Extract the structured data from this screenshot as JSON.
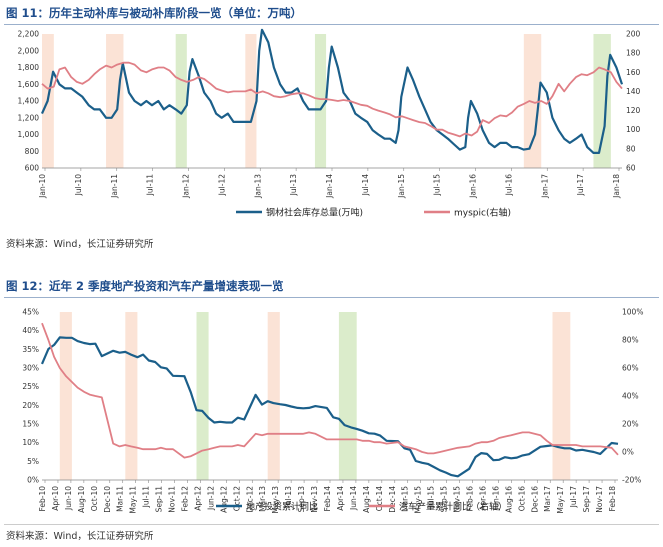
{
  "charts": [
    {
      "figure_label": "图 11：",
      "figure_title": "历年主动补库与被动补库阶段一览（单位：万吨）",
      "source": "资料来源：Wind，长江证券研究所"
    },
    {
      "figure_label": "图 12：",
      "figure_title": "近年 2 季度地产投资和汽车产量增速表现一览",
      "source": "资料来源：Wind，长江证券研究所"
    }
  ],
  "colors": {
    "blue": "#1b5f8a",
    "pink": "#e07f86",
    "shade_orange": "#fbe3d6",
    "shade_green": "#dbeccb",
    "title": "#1f4d8c"
  },
  "chart_data": [
    {
      "type": "line",
      "x_ticks": [
        "Jan-10",
        "Jul-10",
        "Jan-11",
        "Jul-11",
        "Jan-12",
        "Jul-12",
        "Jan-13",
        "Jul-13",
        "Jan-14",
        "Jul-14",
        "Jan-15",
        "Jul-15",
        "Jan-16",
        "Jul-16",
        "Jan-17",
        "Jul-17",
        "Jan-18"
      ],
      "x_range": [
        2010.0,
        2018.33
      ],
      "ylim_left": [
        600,
        2200
      ],
      "y_ticks_left": [
        "600",
        "800",
        "1,000",
        "1,200",
        "1,400",
        "1,600",
        "1,800",
        "2,000",
        "2,200"
      ],
      "ylim_right": [
        60,
        200
      ],
      "y_ticks_right": [
        "60",
        "80",
        "100",
        "120",
        "140",
        "160",
        "180",
        "200"
      ],
      "shaded_periods": [
        {
          "start": 2010.0,
          "end": 2010.17,
          "color": "orange"
        },
        {
          "start": 2010.92,
          "end": 2011.17,
          "color": "orange"
        },
        {
          "start": 2011.92,
          "end": 2012.08,
          "color": "green"
        },
        {
          "start": 2012.92,
          "end": 2013.08,
          "color": "orange"
        },
        {
          "start": 2013.92,
          "end": 2014.08,
          "color": "green"
        },
        {
          "start": 2016.92,
          "end": 2017.17,
          "color": "orange"
        },
        {
          "start": 2017.92,
          "end": 2018.17,
          "color": "green"
        }
      ],
      "series": [
        {
          "name": "钢材社会库存总量(万吨)",
          "axis": "left",
          "color": "blue",
          "x": [
            2010.0,
            2010.08,
            2010.16,
            2010.25,
            2010.33,
            2010.42,
            2010.5,
            2010.58,
            2010.67,
            2010.75,
            2010.83,
            2010.92,
            2011.0,
            2011.08,
            2011.12,
            2011.16,
            2011.25,
            2011.33,
            2011.42,
            2011.5,
            2011.58,
            2011.67,
            2011.75,
            2011.83,
            2011.92,
            2012.0,
            2012.08,
            2012.12,
            2012.16,
            2012.25,
            2012.33,
            2012.42,
            2012.5,
            2012.58,
            2012.67,
            2012.75,
            2012.83,
            2012.92,
            2013.0,
            2013.08,
            2013.12,
            2013.16,
            2013.25,
            2013.33,
            2013.42,
            2013.5,
            2013.58,
            2013.67,
            2013.75,
            2013.83,
            2013.92,
            2014.0,
            2014.08,
            2014.12,
            2014.16,
            2014.25,
            2014.33,
            2014.42,
            2014.5,
            2014.58,
            2014.67,
            2014.75,
            2014.83,
            2014.92,
            2015.0,
            2015.08,
            2015.12,
            2015.16,
            2015.25,
            2015.33,
            2015.42,
            2015.5,
            2015.58,
            2015.67,
            2015.75,
            2015.83,
            2015.92,
            2016.0,
            2016.08,
            2016.12,
            2016.16,
            2016.25,
            2016.33,
            2016.42,
            2016.5,
            2016.58,
            2016.67,
            2016.75,
            2016.83,
            2016.92,
            2017.0,
            2017.08,
            2017.12,
            2017.16,
            2017.25,
            2017.33,
            2017.42,
            2017.5,
            2017.58,
            2017.67,
            2017.75,
            2017.83,
            2017.92,
            2018.0,
            2018.08,
            2018.12,
            2018.16,
            2018.25,
            2018.33
          ],
          "values": [
            1250,
            1400,
            1750,
            1600,
            1550,
            1550,
            1500,
            1450,
            1350,
            1300,
            1300,
            1200,
            1200,
            1300,
            1650,
            1850,
            1500,
            1400,
            1350,
            1400,
            1350,
            1400,
            1300,
            1350,
            1300,
            1250,
            1350,
            1750,
            1900,
            1700,
            1500,
            1400,
            1250,
            1200,
            1250,
            1150,
            1150,
            1150,
            1150,
            1400,
            2000,
            2250,
            2100,
            1800,
            1600,
            1500,
            1500,
            1550,
            1400,
            1300,
            1300,
            1300,
            1400,
            1800,
            2050,
            1800,
            1500,
            1400,
            1250,
            1200,
            1150,
            1050,
            1000,
            950,
            950,
            900,
            1050,
            1450,
            1800,
            1650,
            1450,
            1300,
            1150,
            1050,
            1000,
            950,
            880,
            820,
            850,
            1200,
            1400,
            1250,
            1050,
            900,
            850,
            900,
            900,
            850,
            850,
            820,
            830,
            1000,
            1300,
            1620,
            1500,
            1200,
            1050,
            950,
            900,
            950,
            1000,
            850,
            780,
            780,
            1100,
            1700,
            1950,
            1800,
            1600
          ]
        },
        {
          "name": "myspic(右轴)",
          "axis": "right",
          "color": "pink",
          "x": [
            2010.0,
            2010.08,
            2010.17,
            2010.25,
            2010.33,
            2010.42,
            2010.5,
            2010.58,
            2010.67,
            2010.75,
            2010.83,
            2010.92,
            2011.0,
            2011.08,
            2011.17,
            2011.25,
            2011.33,
            2011.42,
            2011.5,
            2011.58,
            2011.67,
            2011.75,
            2011.83,
            2011.92,
            2012.0,
            2012.08,
            2012.17,
            2012.25,
            2012.33,
            2012.42,
            2012.5,
            2012.58,
            2012.67,
            2012.75,
            2012.83,
            2012.92,
            2013.0,
            2013.08,
            2013.17,
            2013.25,
            2013.33,
            2013.42,
            2013.5,
            2013.58,
            2013.67,
            2013.75,
            2013.83,
            2013.92,
            2014.0,
            2014.08,
            2014.17,
            2014.25,
            2014.33,
            2014.42,
            2014.5,
            2014.58,
            2014.67,
            2014.75,
            2014.83,
            2014.92,
            2015.0,
            2015.08,
            2015.17,
            2015.25,
            2015.33,
            2015.42,
            2015.5,
            2015.58,
            2015.67,
            2015.75,
            2015.83,
            2015.92,
            2016.0,
            2016.08,
            2016.17,
            2016.25,
            2016.33,
            2016.42,
            2016.5,
            2016.58,
            2016.67,
            2016.75,
            2016.83,
            2016.92,
            2017.0,
            2017.08,
            2017.17,
            2017.25,
            2017.33,
            2017.42,
            2017.5,
            2017.58,
            2017.67,
            2017.75,
            2017.83,
            2017.92,
            2018.0,
            2018.08,
            2018.17,
            2018.25,
            2018.33
          ],
          "values": [
            148,
            143,
            145,
            163,
            165,
            155,
            150,
            148,
            152,
            158,
            163,
            167,
            165,
            168,
            170,
            170,
            168,
            162,
            160,
            163,
            165,
            165,
            162,
            155,
            152,
            150,
            152,
            155,
            153,
            148,
            143,
            141,
            139,
            140,
            140,
            140,
            142,
            138,
            140,
            138,
            135,
            134,
            135,
            137,
            138,
            138,
            136,
            133,
            132,
            132,
            131,
            130,
            131,
            130,
            128,
            126,
            125,
            122,
            120,
            118,
            116,
            113,
            114,
            112,
            110,
            108,
            107,
            104,
            100,
            100,
            97,
            95,
            93,
            96,
            94,
            98,
            110,
            107,
            112,
            115,
            114,
            118,
            124,
            127,
            130,
            128,
            130,
            127,
            135,
            148,
            140,
            148,
            155,
            158,
            157,
            160,
            165,
            163,
            160,
            150,
            143
          ]
        }
      ]
    },
    {
      "type": "line",
      "x_ticks": [
        "Feb-10",
        "Apr-10",
        "Jun-10",
        "Aug-10",
        "Oct-10",
        "Dec-10",
        "Mar-11",
        "May-11",
        "Jul-11",
        "Sep-11",
        "Nov-11",
        "Feb-12",
        "Apr-12",
        "Jun-12",
        "Aug-12",
        "Oct-12",
        "Dec-12",
        "Mar-13",
        "May-13",
        "Jul-13",
        "Sep-13",
        "Nov-13",
        "Feb-14",
        "Apr-14",
        "Jun-14",
        "Aug-14",
        "Oct-14",
        "Dec-14",
        "Mar-15",
        "May-15",
        "Jul-15",
        "Sep-15",
        "Nov-15",
        "Feb-16",
        "Apr-16",
        "Jun-16",
        "Aug-16",
        "Oct-16",
        "Dec-16",
        "Mar-17",
        "May-17",
        "Jul-17",
        "Sep-17",
        "Nov-17",
        "Feb-18"
      ],
      "x_range": [
        2010.08,
        2018.17
      ],
      "ylim_left": [
        0,
        45
      ],
      "y_ticks_left": [
        "0%",
        "5%",
        "10%",
        "15%",
        "20%",
        "25%",
        "30%",
        "35%",
        "40%",
        "45%"
      ],
      "ylim_right": [
        -20,
        100
      ],
      "y_ticks_right": [
        "-20%",
        "0%",
        "20%",
        "40%",
        "60%",
        "80%",
        "100%"
      ],
      "shaded_periods": [
        {
          "start": 2010.33,
          "end": 2010.5,
          "color": "orange"
        },
        {
          "start": 2011.25,
          "end": 2011.42,
          "color": "orange"
        },
        {
          "start": 2012.25,
          "end": 2012.42,
          "color": "green"
        },
        {
          "start": 2013.25,
          "end": 2013.42,
          "color": "orange"
        },
        {
          "start": 2014.25,
          "end": 2014.5,
          "color": "green"
        },
        {
          "start": 2017.25,
          "end": 2017.5,
          "color": "orange"
        }
      ],
      "series": [
        {
          "name": "地产投资累计同比",
          "axis": "left",
          "color": "blue",
          "x": [
            2010.08,
            2010.17,
            2010.25,
            2010.33,
            2010.42,
            2010.5,
            2010.58,
            2010.67,
            2010.75,
            2010.83,
            2010.92,
            2011.08,
            2011.17,
            2011.25,
            2011.33,
            2011.42,
            2011.5,
            2011.58,
            2011.67,
            2011.75,
            2011.83,
            2011.92,
            2012.08,
            2012.17,
            2012.25,
            2012.33,
            2012.42,
            2012.5,
            2012.58,
            2012.67,
            2012.75,
            2012.83,
            2012.92,
            2013.08,
            2013.17,
            2013.25,
            2013.33,
            2013.42,
            2013.5,
            2013.58,
            2013.67,
            2013.75,
            2013.83,
            2013.92,
            2014.08,
            2014.17,
            2014.25,
            2014.33,
            2014.42,
            2014.5,
            2014.58,
            2014.67,
            2014.75,
            2014.83,
            2014.92,
            2015.08,
            2015.17,
            2015.25,
            2015.33,
            2015.42,
            2015.5,
            2015.58,
            2015.67,
            2015.75,
            2015.83,
            2015.92,
            2016.08,
            2016.17,
            2016.25,
            2016.33,
            2016.42,
            2016.5,
            2016.58,
            2016.67,
            2016.75,
            2016.83,
            2016.92,
            2017.08,
            2017.17,
            2017.25,
            2017.33,
            2017.42,
            2017.5,
            2017.58,
            2017.67,
            2017.75,
            2017.83,
            2017.92,
            2018.08,
            2018.17
          ],
          "values": [
            31.1,
            35.1,
            36.2,
            38.2,
            38.1,
            38.1,
            37.2,
            36.7,
            36.4,
            36.5,
            33.2,
            34.6,
            34.1,
            34.3,
            33.6,
            32.9,
            33.6,
            32.0,
            31.6,
            30.2,
            29.9,
            27.9,
            27.8,
            23.5,
            18.7,
            18.5,
            16.6,
            15.4,
            15.6,
            15.4,
            15.4,
            16.7,
            16.2,
            22.8,
            20.2,
            21.1,
            20.6,
            20.3,
            20.1,
            19.7,
            19.3,
            19.2,
            19.3,
            19.8,
            19.3,
            16.8,
            16.4,
            14.7,
            14.1,
            13.7,
            13.2,
            12.5,
            12.4,
            11.9,
            10.5,
            10.4,
            8.5,
            8.1,
            5.1,
            4.6,
            4.3,
            3.5,
            2.6,
            2.0,
            1.3,
            1.0,
            3.0,
            6.2,
            7.2,
            7.0,
            5.3,
            5.4,
            6.1,
            5.8,
            6.0,
            6.6,
            6.9,
            8.9,
            9.1,
            9.3,
            8.8,
            8.5,
            8.5,
            7.9,
            8.1,
            7.8,
            7.5,
            7.0,
            9.9,
            9.7
          ]
        },
        {
          "name": "汽车产量累计同比（右轴）",
          "axis": "right",
          "color": "pink",
          "x": [
            2010.08,
            2010.17,
            2010.25,
            2010.33,
            2010.42,
            2010.5,
            2010.58,
            2010.67,
            2010.75,
            2010.83,
            2010.92,
            2011.08,
            2011.17,
            2011.25,
            2011.33,
            2011.42,
            2011.5,
            2011.58,
            2011.67,
            2011.75,
            2011.83,
            2011.92,
            2012.08,
            2012.17,
            2012.25,
            2012.33,
            2012.42,
            2012.5,
            2012.58,
            2012.67,
            2012.75,
            2012.83,
            2012.92,
            2013.08,
            2013.17,
            2013.25,
            2013.33,
            2013.42,
            2013.5,
            2013.58,
            2013.67,
            2013.75,
            2013.83,
            2013.92,
            2014.08,
            2014.17,
            2014.25,
            2014.33,
            2014.42,
            2014.5,
            2014.58,
            2014.67,
            2014.75,
            2014.83,
            2014.92,
            2015.08,
            2015.17,
            2015.25,
            2015.33,
            2015.42,
            2015.5,
            2015.58,
            2015.67,
            2015.75,
            2015.83,
            2015.92,
            2016.08,
            2016.17,
            2016.25,
            2016.33,
            2016.42,
            2016.5,
            2016.58,
            2016.67,
            2016.75,
            2016.83,
            2016.92,
            2017.08,
            2017.17,
            2017.25,
            2017.33,
            2017.42,
            2017.5,
            2017.58,
            2017.67,
            2017.75,
            2017.83,
            2017.92,
            2018.08,
            2018.17
          ],
          "values": [
            92,
            80,
            68,
            60,
            54,
            50,
            46,
            43,
            41,
            40,
            39,
            6,
            4,
            5,
            4,
            3,
            2,
            2,
            2,
            3,
            2,
            2,
            -4,
            -3,
            -1,
            1,
            2,
            3,
            4,
            4,
            4,
            5,
            4,
            13,
            12,
            13,
            13,
            13,
            13,
            13,
            13,
            13,
            14,
            13,
            9,
            9,
            9,
            9,
            9,
            9,
            8,
            8,
            7,
            7,
            6,
            7,
            4,
            3,
            2,
            0,
            -1,
            -1,
            0,
            1,
            2,
            3,
            4,
            6,
            7,
            7,
            8,
            10,
            11,
            12,
            13,
            14,
            14,
            12,
            8,
            5,
            5,
            5,
            5,
            5,
            4,
            4,
            4,
            4,
            3,
            -2
          ]
        }
      ]
    }
  ]
}
